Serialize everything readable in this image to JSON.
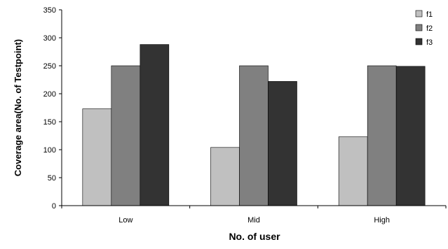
{
  "chart_data": {
    "type": "bar",
    "title": "",
    "xlabel": "No. of user",
    "ylabel": "Coverage area(No. of Testpoint)",
    "categories": [
      "Low",
      "Mid",
      "High"
    ],
    "ylim": [
      0,
      350
    ],
    "yticks": [
      0,
      50,
      100,
      150,
      200,
      250,
      300,
      350
    ],
    "grid": false,
    "legend_position": "top-right",
    "series": [
      {
        "name": "f1",
        "values": [
          173,
          104,
          123
        ],
        "color": "#c0c0c0"
      },
      {
        "name": "f2",
        "values": [
          250,
          250,
          250
        ],
        "color": "#808080"
      },
      {
        "name": "f3",
        "values": [
          288,
          222,
          249
        ],
        "color": "#333333"
      }
    ]
  }
}
